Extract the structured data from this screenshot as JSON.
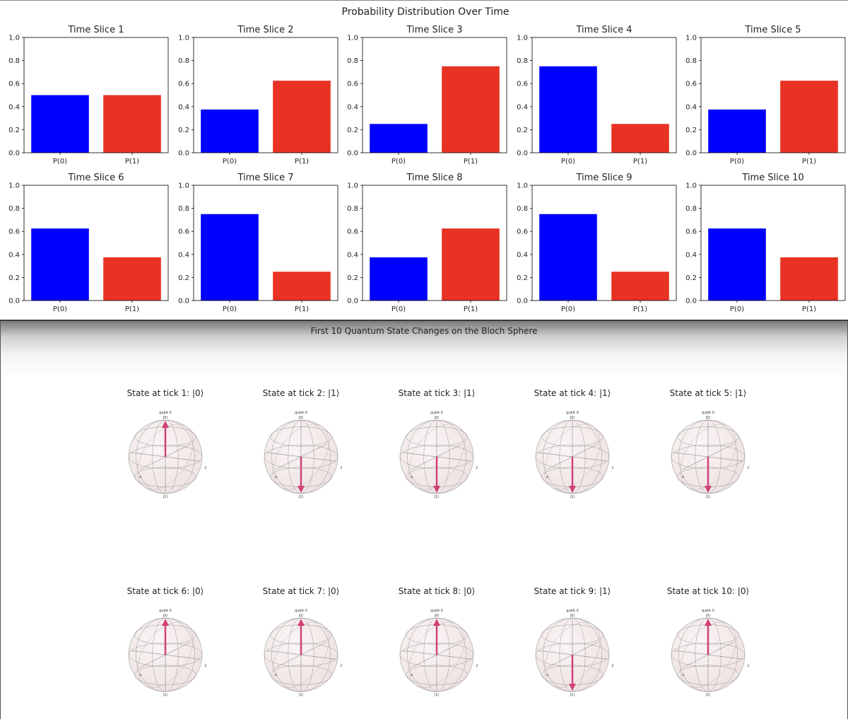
{
  "top_title": "Probability Distribution Over Time",
  "bottom_title": "First 10 Quantum State Changes on the Bloch Sphere",
  "colors": {
    "p0": "#0000ff",
    "p1": "#e83223",
    "arrow": "#d0407a",
    "sphere": "#efe3e3"
  },
  "chart_data": [
    {
      "type": "bar",
      "title": "Time Slice 1",
      "categories": [
        "P(0)",
        "P(1)"
      ],
      "values": [
        0.5,
        0.5
      ],
      "ylim": [
        0,
        1.0
      ],
      "yticks": [
        "0.0",
        "0.2",
        "0.4",
        "0.6",
        "0.8",
        "1.0"
      ]
    },
    {
      "type": "bar",
      "title": "Time Slice 2",
      "categories": [
        "P(0)",
        "P(1)"
      ],
      "values": [
        0.375,
        0.625
      ],
      "ylim": [
        0,
        1.0
      ],
      "yticks": [
        "0.0",
        "0.2",
        "0.4",
        "0.6",
        "0.8",
        "1.0"
      ]
    },
    {
      "type": "bar",
      "title": "Time Slice 3",
      "categories": [
        "P(0)",
        "P(1)"
      ],
      "values": [
        0.25,
        0.75
      ],
      "ylim": [
        0,
        1.0
      ],
      "yticks": [
        "0.0",
        "0.2",
        "0.4",
        "0.6",
        "0.8",
        "1.0"
      ]
    },
    {
      "type": "bar",
      "title": "Time Slice 4",
      "categories": [
        "P(0)",
        "P(1)"
      ],
      "values": [
        0.75,
        0.25
      ],
      "ylim": [
        0,
        1.0
      ],
      "yticks": [
        "0.0",
        "0.2",
        "0.4",
        "0.6",
        "0.8",
        "1.0"
      ]
    },
    {
      "type": "bar",
      "title": "Time Slice 5",
      "categories": [
        "P(0)",
        "P(1)"
      ],
      "values": [
        0.375,
        0.625
      ],
      "ylim": [
        0,
        1.0
      ],
      "yticks": [
        "0.0",
        "0.2",
        "0.4",
        "0.6",
        "0.8",
        "1.0"
      ]
    },
    {
      "type": "bar",
      "title": "Time Slice 6",
      "categories": [
        "P(0)",
        "P(1)"
      ],
      "values": [
        0.625,
        0.375
      ],
      "ylim": [
        0,
        1.0
      ],
      "yticks": [
        "0.0",
        "0.2",
        "0.4",
        "0.6",
        "0.8",
        "1.0"
      ]
    },
    {
      "type": "bar",
      "title": "Time Slice 7",
      "categories": [
        "P(0)",
        "P(1)"
      ],
      "values": [
        0.75,
        0.25
      ],
      "ylim": [
        0,
        1.0
      ],
      "yticks": [
        "0.0",
        "0.2",
        "0.4",
        "0.6",
        "0.8",
        "1.0"
      ]
    },
    {
      "type": "bar",
      "title": "Time Slice 8",
      "categories": [
        "P(0)",
        "P(1)"
      ],
      "values": [
        0.375,
        0.625
      ],
      "ylim": [
        0,
        1.0
      ],
      "yticks": [
        "0.0",
        "0.2",
        "0.4",
        "0.6",
        "0.8",
        "1.0"
      ]
    },
    {
      "type": "bar",
      "title": "Time Slice 9",
      "categories": [
        "P(0)",
        "P(1)"
      ],
      "values": [
        0.75,
        0.25
      ],
      "ylim": [
        0,
        1.0
      ],
      "yticks": [
        "0.0",
        "0.2",
        "0.4",
        "0.6",
        "0.8",
        "1.0"
      ]
    },
    {
      "type": "bar",
      "title": "Time Slice 10",
      "categories": [
        "P(0)",
        "P(1)"
      ],
      "values": [
        0.625,
        0.375
      ],
      "ylim": [
        0,
        1.0
      ],
      "yticks": [
        "0.0",
        "0.2",
        "0.4",
        "0.6",
        "0.8",
        "1.0"
      ]
    }
  ],
  "bloch": {
    "qubit_label": "qubit 0",
    "top_label": "|0⟩",
    "bottom_label": "|1⟩",
    "x_label": "x",
    "y_label": "y",
    "states": [
      {
        "title": "State at tick 1: |0⟩",
        "state": 0
      },
      {
        "title": "State at tick 2: |1⟩",
        "state": 1
      },
      {
        "title": "State at tick 3: |1⟩",
        "state": 1
      },
      {
        "title": "State at tick 4: |1⟩",
        "state": 1
      },
      {
        "title": "State at tick 5: |1⟩",
        "state": 1
      },
      {
        "title": "State at tick 6: |0⟩",
        "state": 0
      },
      {
        "title": "State at tick 7: |0⟩",
        "state": 0
      },
      {
        "title": "State at tick 8: |0⟩",
        "state": 0
      },
      {
        "title": "State at tick 9: |1⟩",
        "state": 1
      },
      {
        "title": "State at tick 10: |0⟩",
        "state": 0
      }
    ]
  }
}
